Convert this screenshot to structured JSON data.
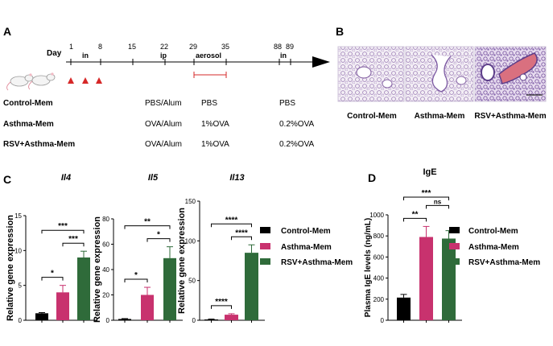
{
  "panels": {
    "A": {
      "letter": "A",
      "day_label": "Day",
      "days": [
        "1",
        "8",
        "15",
        "22",
        "29",
        "35",
        "88",
        "89"
      ],
      "phases": {
        "in1": "in",
        "ip": "ip",
        "aerosol": "aerosol",
        "in2": "in"
      },
      "groups": [
        {
          "name": "Control-Mem",
          "ip": "PBS/Alum",
          "aerosol": "PBS",
          "in": "PBS"
        },
        {
          "name": "Asthma-Mem",
          "ip": "OVA/Alum",
          "aerosol": "1%OVA",
          "in": "0.2%OVA"
        },
        {
          "name": "RSV+Asthma-Mem",
          "ip": "OVA/Alum",
          "aerosol": "1%OVA",
          "in": "0.2%OVA"
        }
      ]
    },
    "B": {
      "letter": "B",
      "captions": [
        "Control-Mem",
        "Asthma-Mem",
        "RSV+Asthma-Mem"
      ]
    },
    "C": {
      "letter": "C"
    },
    "D": {
      "letter": "D"
    }
  },
  "legend": [
    "Control-Mem",
    "Asthma-Mem",
    "RSV+Asthma-Mem"
  ],
  "colors": {
    "Control-Mem": "#000000",
    "Asthma-Mem": "#c8326e",
    "RSV+Asthma-Mem": "#2f6b3a",
    "arrow_red": "#d62828"
  },
  "chart_data": [
    {
      "type": "bar",
      "title": "Il4",
      "ylabel": "Relative gene expression",
      "categories": [
        "Control-Mem",
        "Asthma-Mem",
        "RSV+Asthma-Mem"
      ],
      "values": [
        1,
        4,
        9
      ],
      "errors": [
        0.1,
        1.0,
        0.9
      ],
      "ylim": [
        0,
        15
      ],
      "yticks": [
        0,
        5,
        10,
        15
      ],
      "significance": [
        {
          "pair": [
            0,
            1
          ],
          "label": "*"
        },
        {
          "pair": [
            1,
            2
          ],
          "label": "***"
        },
        {
          "pair": [
            0,
            2
          ],
          "label": "***"
        }
      ]
    },
    {
      "type": "bar",
      "title": "Il5",
      "ylabel": "Relative gene expression",
      "categories": [
        "Control-Mem",
        "Asthma-Mem",
        "RSV+Asthma-Mem"
      ],
      "values": [
        1,
        20,
        49
      ],
      "errors": [
        0.3,
        6,
        9
      ],
      "ylim": [
        0,
        80
      ],
      "yticks": [
        0,
        20,
        40,
        60,
        80
      ],
      "significance": [
        {
          "pair": [
            0,
            1
          ],
          "label": "*"
        },
        {
          "pair": [
            1,
            2
          ],
          "label": "*"
        },
        {
          "pair": [
            0,
            2
          ],
          "label": "**"
        }
      ]
    },
    {
      "type": "bar",
      "title": "Il13",
      "ylabel": "Relative gene expression",
      "categories": [
        "Control-Mem",
        "Asthma-Mem",
        "RSV+Asthma-Mem"
      ],
      "values": [
        1,
        7,
        85
      ],
      "errors": [
        0.5,
        1.2,
        10
      ],
      "ylim": [
        0,
        150
      ],
      "yticks": [
        0,
        50,
        100,
        150
      ],
      "significance": [
        {
          "pair": [
            0,
            1
          ],
          "label": "****"
        },
        {
          "pair": [
            1,
            2
          ],
          "label": "****"
        },
        {
          "pair": [
            0,
            2
          ],
          "label": "****"
        }
      ]
    },
    {
      "type": "bar",
      "title": "IgE",
      "ylabel": "Plasma IgE levels (ng/mL)",
      "categories": [
        "Control-Mem",
        "Asthma-Mem",
        "RSV+Asthma-Mem"
      ],
      "values": [
        215,
        790,
        775
      ],
      "errors": [
        30,
        100,
        75
      ],
      "ylim": [
        0,
        1000
      ],
      "yticks": [
        0,
        200,
        400,
        600,
        800,
        1000
      ],
      "significance": [
        {
          "pair": [
            0,
            1
          ],
          "label": "**"
        },
        {
          "pair": [
            1,
            2
          ],
          "label": "ns"
        },
        {
          "pair": [
            0,
            2
          ],
          "label": "***"
        }
      ]
    }
  ]
}
